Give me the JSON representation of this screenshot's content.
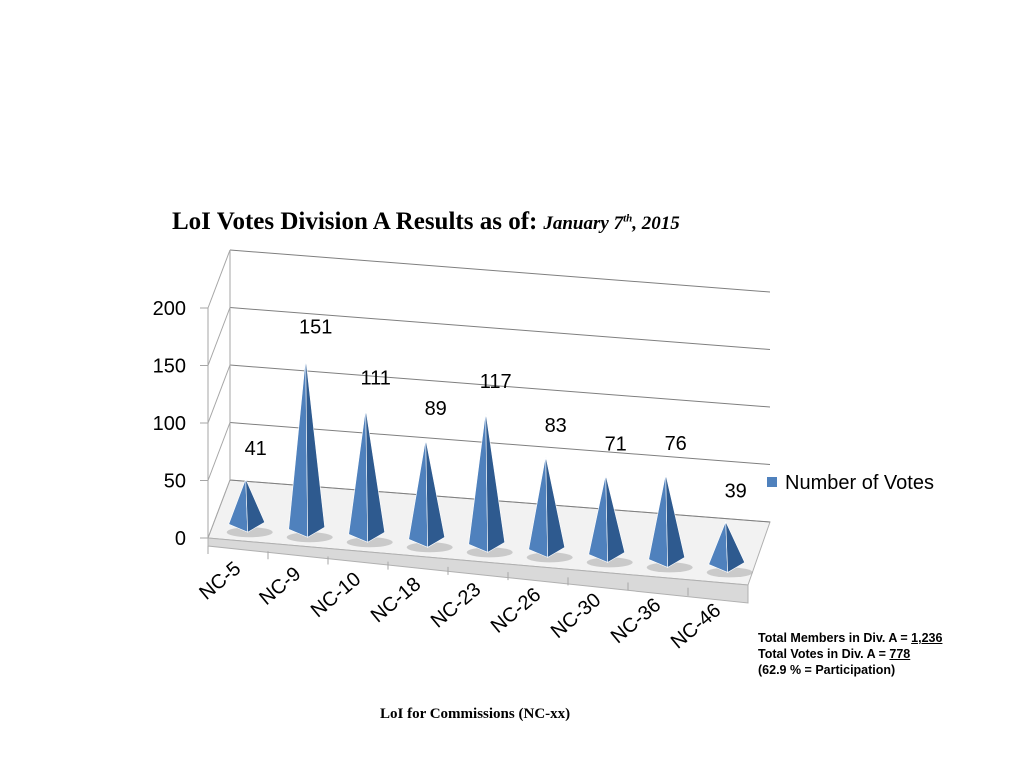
{
  "title": {
    "main": "LoI Votes Division A Results as of:",
    "date_month_day": "January 7",
    "date_suffix": "th",
    "date_year": ", 2015"
  },
  "chart_data": {
    "type": "bar",
    "subtype": "3d-pyramid",
    "categories": [
      "NC-5",
      "NC-9",
      "NC-10",
      "NC-18",
      "NC-23",
      "NC-26",
      "NC-30",
      "NC-36",
      "NC-46"
    ],
    "series": [
      {
        "name": "Number of Votes",
        "values": [
          41,
          151,
          111,
          89,
          117,
          83,
          71,
          76,
          39
        ]
      }
    ],
    "y_ticks": [
      "0",
      "50",
      "100",
      "150",
      "200"
    ],
    "ylim": [
      0,
      200
    ],
    "xlabel": "LoI for Commissions (NC-xx)",
    "ylabel": "",
    "grid": true,
    "legend_position": "right",
    "bar_color": "#4f81bd"
  },
  "notes": {
    "members_label": "Total Members in Div. A = ",
    "members_value": "1,236",
    "votes_label": "Total Votes in Div. A = ",
    "votes_value": "778",
    "participation": "(62.9 % = Participation)"
  }
}
